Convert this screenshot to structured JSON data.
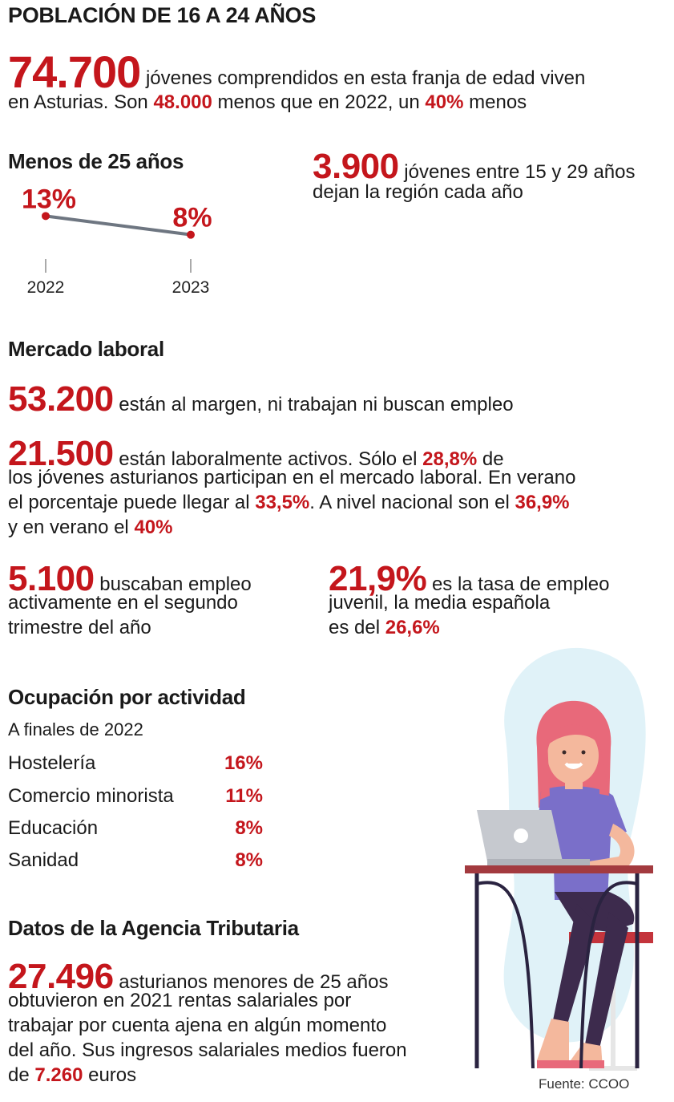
{
  "header": {
    "title": "POBLACIÓN DE 16 A 24 AÑOS"
  },
  "intro": {
    "big_number": "74.700",
    "text_1": "jóvenes comprendidos en esta franja de edad viven",
    "text_2a": "en Asturias. Son",
    "highlight_1": "48.000",
    "text_2b": "menos que en 2022, un",
    "highlight_2": "40%",
    "text_2c": "menos"
  },
  "chart_data": {
    "type": "line",
    "title": "Menos de 25 años",
    "categories": [
      "2022",
      "2023"
    ],
    "values": [
      13,
      8
    ],
    "value_labels": [
      "13%",
      "8%"
    ],
    "ylim": [
      0,
      15
    ],
    "grid": false
  },
  "emigration": {
    "number": "3.900",
    "text_1": "jóvenes entre 15 y 29 años",
    "text_2": "dejan la región cada año"
  },
  "labor": {
    "heading": "Mercado laboral",
    "inactive_number": "53.200",
    "inactive_text": "están al margen, ni trabajan ni buscan empleo",
    "active_number": "21.500",
    "active_text_1a": "están laboralmente activos. Sólo el",
    "active_pct_1": "28,8%",
    "active_text_1b": "de",
    "active_text_2": "los jóvenes asturianos participan en el mercado laboral. En verano",
    "active_text_3a": "el porcentaje puede llegar al",
    "active_pct_2": "33,5%",
    "active_text_3b": ". A nivel nacional son el",
    "active_pct_3": "36,9%",
    "active_text_4a": "y en verano el",
    "active_pct_4": "40%",
    "seeking_number": "5.100",
    "seeking_text_1": "buscaban empleo",
    "seeking_text_2": "activamente en el segundo",
    "seeking_text_3": "trimestre del año",
    "rate_number": "21,9%",
    "rate_text_1": "es la tasa de empleo",
    "rate_text_2": "juvenil, la media española",
    "rate_text_3a": "es del",
    "rate_pct": "26,6%"
  },
  "occupation": {
    "heading": "Ocupación por actividad",
    "subtitle": "A finales de 2022",
    "rows": [
      {
        "label": "Hostelería",
        "value": "16%"
      },
      {
        "label": "Comercio minorista",
        "value": "11%"
      },
      {
        "label": "Educación",
        "value": "8%"
      },
      {
        "label": "Sanidad",
        "value": "8%"
      }
    ]
  },
  "tax": {
    "heading": "Datos de la Agencia Tributaria",
    "number": "27.496",
    "text_1": "asturianos menores de 25 años",
    "text_2": "obtuvieron en 2021 rentas salariales por",
    "text_3": "trabajar por cuenta ajena en algún momento",
    "text_4": "del año. Sus ingresos salariales medios fueron",
    "text_5a": "de",
    "euros_number": "7.260",
    "text_5b": "euros"
  },
  "footer": {
    "source": "Fuente: CCOO"
  },
  "colors": {
    "accent": "#c4161c",
    "line": "#6e7681",
    "illustration_bg": "#e0f2f8"
  }
}
